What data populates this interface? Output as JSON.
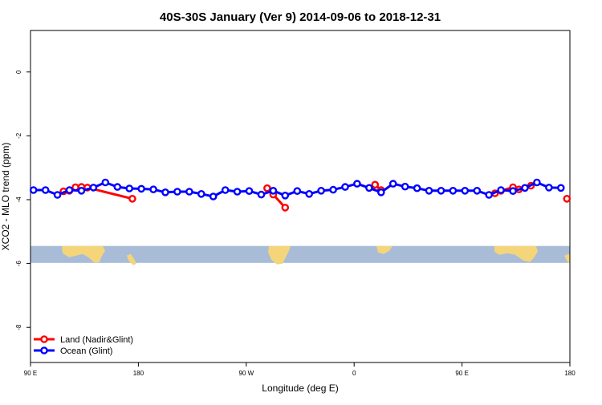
{
  "chart_data": {
    "type": "line",
    "title": "40S-30S January (Ver 9)   2014-09-06 to 2018-12-31",
    "xlabel": "Longitude (deg E)",
    "ylabel": "XCO2 - MLO trend (ppm)",
    "xlim": [
      90,
      540
    ],
    "ylim": [
      1.3,
      -9.1
    ],
    "x_ticks": [
      {
        "value": 90,
        "label": "90 E"
      },
      {
        "value": 180,
        "label": "180"
      },
      {
        "value": 270,
        "label": "90 W"
      },
      {
        "value": 360,
        "label": "0"
      },
      {
        "value": 450,
        "label": "90 E"
      },
      {
        "value": 540,
        "label": "180"
      }
    ],
    "y_ticks": [
      {
        "value": 0,
        "label": "0"
      },
      {
        "value": -2,
        "label": "-2"
      },
      {
        "value": -4,
        "label": "-4"
      },
      {
        "value": -6,
        "label": "-6"
      },
      {
        "value": -8,
        "label": "-8"
      }
    ],
    "grid": false,
    "legend_position": "bottom-left",
    "map_band": {
      "y_top": -5.45,
      "y_bottom": -5.98,
      "ocean_color": "#a8bcd8",
      "land_color": "#f5d57a"
    },
    "series": [
      {
        "name": "Land (Nadir&Glint)",
        "color": "#ff0000",
        "segments": [
          [
            [
              117.5,
              -3.74
            ],
            [
              122.5,
              -3.72
            ],
            [
              127.5,
              -3.61
            ],
            [
              132.5,
              -3.6
            ],
            [
              137.5,
              -3.62
            ],
            [
              175,
              -3.97
            ]
          ],
          [
            [
              287.5,
              -3.64
            ],
            [
              292.5,
              -3.84
            ],
            [
              302.5,
              -4.25
            ]
          ],
          [
            [
              377.5,
              -3.53
            ],
            [
              382.5,
              -3.7
            ]
          ],
          [
            [
              477.5,
              -3.8
            ],
            [
              482.5,
              -3.72
            ],
            [
              492.5,
              -3.61
            ],
            [
              497.5,
              -3.68
            ],
            [
              507.5,
              -3.56
            ]
          ],
          [
            [
              537.5,
              -3.97
            ]
          ]
        ]
      },
      {
        "name": "Ocean (Glint)",
        "color": "#0000ff",
        "x": [
          92.5,
          102.5,
          112.5,
          122.5,
          132.5,
          142.5,
          152.5,
          162.5,
          172.5,
          182.5,
          192.5,
          202.5,
          212.5,
          222.5,
          232.5,
          242.5,
          252.5,
          262.5,
          272.5,
          282.5,
          292.5,
          302.5,
          312.5,
          322.5,
          332.5,
          342.5,
          352.5,
          362.5,
          372.5,
          382.5,
          392.5,
          402.5,
          412.5,
          422.5,
          432.5,
          442.5,
          452.5,
          462.5,
          472.5,
          482.5,
          492.5,
          502.5,
          512.5,
          522.5,
          532.5
        ],
        "y": [
          -3.7,
          -3.7,
          -3.85,
          -3.7,
          -3.72,
          -3.62,
          -3.46,
          -3.6,
          -3.65,
          -3.66,
          -3.68,
          -3.77,
          -3.75,
          -3.75,
          -3.82,
          -3.9,
          -3.7,
          -3.75,
          -3.73,
          -3.84,
          -3.72,
          -3.87,
          -3.73,
          -3.82,
          -3.72,
          -3.69,
          -3.6,
          -3.5,
          -3.63,
          -3.77,
          -3.5,
          -3.59,
          -3.64,
          -3.72,
          -3.72,
          -3.72,
          -3.72,
          -3.72,
          -3.85,
          -3.7,
          -3.73,
          -3.63,
          -3.46,
          -3.62,
          -3.63
        ]
      }
    ]
  }
}
